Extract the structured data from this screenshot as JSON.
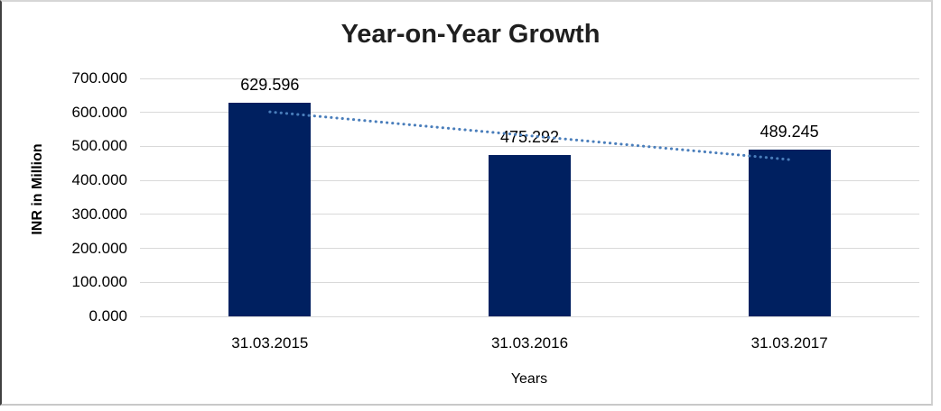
{
  "chart_data": {
    "type": "bar",
    "title": "Year-on-Year Growth",
    "xlabel": "Years",
    "ylabel": "INR in Million",
    "categories": [
      "31.03.2015",
      "31.03.2016",
      "31.03.2017"
    ],
    "values": [
      629.596,
      475.292,
      489.245
    ],
    "data_labels": [
      "629.596",
      "475.292",
      "489.245"
    ],
    "ylim": [
      0,
      700
    ],
    "ytick_step": 100,
    "ytick_labels": [
      "0.000",
      "100.000",
      "200.000",
      "300.000",
      "400.000",
      "500.000",
      "600.000",
      "700.000"
    ],
    "grid": true,
    "legend": false,
    "bar_color": "#002060",
    "gridline_color": "#d9d9d9",
    "trendline": {
      "type": "linear",
      "style": "dotted",
      "color": "#4a7ebb"
    }
  }
}
